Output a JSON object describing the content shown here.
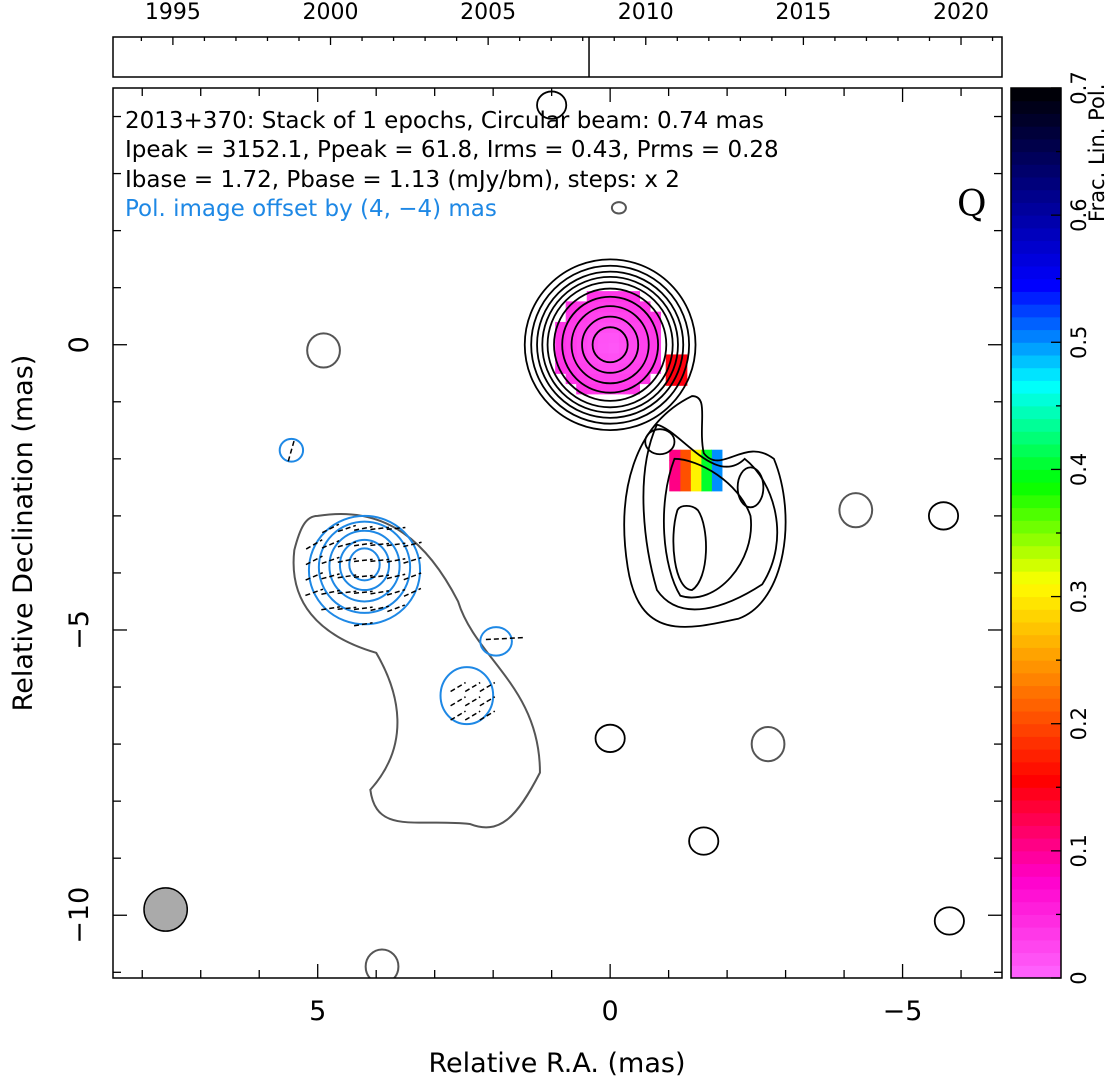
{
  "chart_data": {
    "type": "heatmap",
    "source": "2013+370",
    "band_label": "Q",
    "header_lines": [
      "2013+370: Stack of 1 epochs, Circular beam: 0.74 mas",
      "Ipeak = 3152.1, Ppeak = 61.8, Irms = 0.43, Prms = 0.28",
      "Ibase = 1.72, Pbase = 1.13 (mJy/bm), steps: x 2"
    ],
    "offset_note": "Pol. image offset by (4, −4) mas",
    "xlabel": "Relative R.A. (mas)",
    "ylabel": "Relative Declination (mas)",
    "xlim": [
      8.5,
      -6.7
    ],
    "ylim": [
      -11.1,
      4.5
    ],
    "x_ticks": [
      5,
      0,
      -5
    ],
    "x_tick_labels": [
      "5",
      "0",
      "−5"
    ],
    "y_ticks": [
      0,
      -5,
      -10
    ],
    "y_tick_labels": [
      "0",
      "−5",
      "−10"
    ],
    "timeline": {
      "range": [
        1993.1,
        2021.3
      ],
      "ticks": [
        1995,
        2000,
        2005,
        2010,
        2015,
        2020
      ],
      "tick_labels": [
        "1995",
        "2000",
        "2005",
        "2010",
        "2015",
        "2020"
      ],
      "epochs": [
        2008.2
      ]
    },
    "colorbar": {
      "label": "Frac. Lin. Pol.",
      "range": [
        0,
        0.7
      ],
      "ticks": [
        0,
        0.1,
        0.2,
        0.3,
        0.4,
        0.5,
        0.6,
        0.7
      ],
      "tick_labels": [
        "0",
        "0.1",
        "0.2",
        "0.3",
        "0.4",
        "0.5",
        "0.6",
        "0.7"
      ],
      "colormap": [
        "#ff66ff",
        "#ff00cc",
        "#ff0000",
        "#ff8000",
        "#ffff00",
        "#00ff00",
        "#00ffff",
        "#0000ff",
        "#000080",
        "#000000"
      ]
    },
    "beam": {
      "x": 7.6,
      "y": -9.9,
      "radius": 0.37,
      "color": "#aaaaaa"
    },
    "stokes_i_core": {
      "x": 0.0,
      "y": 0.0,
      "radii": [
        0.3,
        0.48,
        0.66,
        0.82,
        0.96,
        1.07,
        1.16,
        1.25,
        1.35,
        1.46
      ]
    },
    "frac_pol_regions": [
      {
        "name": "core",
        "x": 0.0,
        "y": 0.0,
        "rx": 0.95,
        "ry": 0.95,
        "value": 0.02
      },
      {
        "name": "core-edge",
        "x": -1.15,
        "y": -0.5,
        "rx": 0.25,
        "ry": 0.3,
        "value": 0.15
      },
      {
        "name": "knot",
        "x": -1.5,
        "y": -2.2,
        "rx": 0.5,
        "ry": 0.45,
        "value": 0.35
      }
    ],
    "polarization_contours_note": "blue contours, offset by (4, −4) mas",
    "rms_islands_gray": [
      [
        4.9,
        -0.1
      ],
      [
        -4.2,
        -2.9
      ],
      [
        -2.7,
        -7.0
      ],
      [
        3.9,
        -10.9
      ]
    ],
    "rms_islands_black": [
      [
        1.0,
        4.2
      ],
      [
        0.0,
        -6.9
      ],
      [
        -5.7,
        -3.0
      ],
      [
        -1.6,
        -8.7
      ],
      [
        -5.8,
        -10.1
      ]
    ]
  },
  "colors": {
    "total_intensity_contours": "#000000",
    "lowest_contour": "#555555",
    "polarization_contours": "#1e88e5",
    "offset_note": "#1e88e5"
  }
}
